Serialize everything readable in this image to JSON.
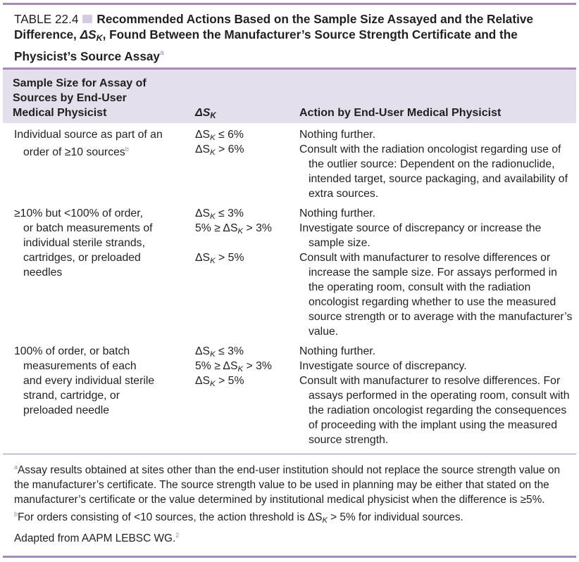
{
  "table": {
    "label": "TABLE 22.4",
    "title": "Recommended Actions Based on the Sample Size Assayed and the Relative Difference,",
    "title_symbol": "ΔS",
    "title_symbol_sub": "K",
    "title_rest_1": ", Found Between the Manufacturer’s Source Strength Certificate and the",
    "title_rest_2": "Physicist’s Source Assay",
    "title_note_mark": "a"
  },
  "headers": {
    "sample_size": [
      "Sample Size for Assay of",
      "Sources by End-User",
      "Medical Physicist"
    ],
    "delta": "ΔS",
    "delta_sub": "K",
    "action": "Action by End-User Medical Physicist"
  },
  "rows": [
    {
      "sample_lines": [
        "Individual source as part of an",
        "order of ≥10 sources"
      ],
      "sample_note_mark": "b",
      "deltas": [
        {
          "pre": "ΔS",
          "sub": "K",
          "post": " ≤ 6%"
        },
        {
          "pre": "ΔS",
          "sub": "K",
          "post": " > 6%"
        }
      ],
      "actions": [
        "Nothing further.",
        "Consult with the radiation oncologist regarding use of the outlier source: Dependent on the radionuclide, intended target, source packaging, and availability of extra sources."
      ]
    },
    {
      "sample_lines": [
        "≥10% but <100% of order,",
        "or batch measurements of",
        "individual sterile strands,",
        "cartridges, or preloaded",
        "needles"
      ],
      "deltas": [
        {
          "pre": "ΔS",
          "sub": "K",
          "post": " ≤ 3%"
        },
        {
          "pre": "5% ≥ ΔS",
          "sub": "K",
          "post": " > 3%"
        },
        {
          "pre": "ΔS",
          "sub": "K",
          "post": " > 5%"
        }
      ],
      "actions": [
        "Nothing further.",
        "Investigate source of discrepancy or increase the sample size.",
        "Consult with manufacturer to resolve differences or increase the sample size. For assays performed in the operating room, consult with the radiation oncologist regarding whether to use the measured source strength or to average with the manufacturer’s value."
      ]
    },
    {
      "sample_lines": [
        "100% of order, or batch",
        "measurements of each",
        "and every individual sterile",
        "strand, cartridge, or",
        "preloaded needle"
      ],
      "deltas": [
        {
          "pre": "ΔS",
          "sub": "K",
          "post": " ≤ 3%"
        },
        {
          "pre": "5% ≥ ΔS",
          "sub": "K",
          "post": " > 3%"
        },
        {
          "pre": "ΔS",
          "sub": "K",
          "post": " > 5%"
        }
      ],
      "actions": [
        "Nothing further.",
        "Investigate source of discrepancy.",
        "Consult with manufacturer to resolve differences. For assays performed in the operating room, consult with the radiation oncologist regarding the consequences of proceeding with the implant using the measured source strength."
      ]
    }
  ],
  "footnotes": {
    "a_mark": "a",
    "a_text": "Assay results obtained at sites other than the end-user institution should not replace the source strength value on the manufacturer’s certificate. The source strength value to be used in planning may be either that stated on the manufacturer’s certificate or the value determined by institutional medical physicist when the difference is ≥5%.",
    "b_mark": "b",
    "b_text_pre": "For orders consisting of <10 sources, the action threshold is ΔS",
    "b_text_sub": "K",
    "b_text_post": " > 5% for individual sources.",
    "adapted": "Adapted from AAPM LEBSC WG.",
    "adapted_ref": "2"
  },
  "colors": {
    "rule": "#a58ab8",
    "header_band": "#e5dfec",
    "caption_box": "#d5cbe0",
    "text": "#231f20"
  }
}
